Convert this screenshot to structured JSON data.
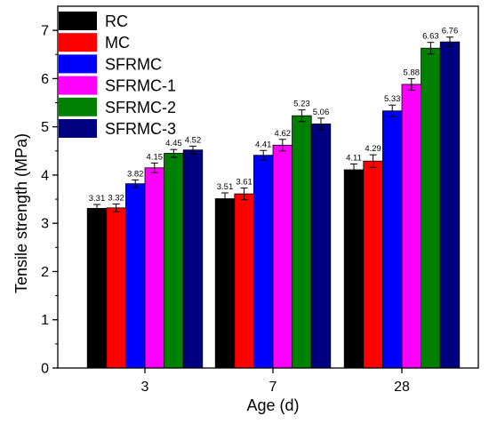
{
  "chart_data": {
    "type": "bar",
    "title": "",
    "xlabel": "Age (d)",
    "ylabel": "Tensile strength (MPa)",
    "ylim": [
      0,
      7.5
    ],
    "yticks": [
      0,
      1,
      2,
      3,
      4,
      5,
      6,
      7
    ],
    "categories": [
      "3",
      "7",
      "28"
    ],
    "legend_position": "top-left",
    "grid": false,
    "series": [
      {
        "name": "RC",
        "color": "#000000",
        "values": [
          3.31,
          3.51,
          4.11
        ],
        "errors": [
          0.08,
          0.12,
          0.12
        ],
        "value_labels": [
          "3.31",
          "3.51",
          "4.11"
        ]
      },
      {
        "name": "MC",
        "color": "#ff0000",
        "values": [
          3.32,
          3.61,
          4.29
        ],
        "errors": [
          0.08,
          0.12,
          0.13
        ],
        "value_labels": [
          "3.32",
          "3.61",
          "4.29"
        ]
      },
      {
        "name": "SFRMC",
        "color": "#0000ff",
        "values": [
          3.82,
          4.41,
          5.33
        ],
        "errors": [
          0.08,
          0.1,
          0.12
        ],
        "value_labels": [
          "3.82",
          "4.41",
          "5.33"
        ]
      },
      {
        "name": "SFRMC-1",
        "color": "#ff00ff",
        "values": [
          4.15,
          4.62,
          5.88
        ],
        "errors": [
          0.1,
          0.12,
          0.12
        ],
        "value_labels": [
          "4.15",
          "4.62",
          "5.88"
        ]
      },
      {
        "name": "SFRMC-2",
        "color": "#008000",
        "values": [
          4.45,
          5.23,
          6.63
        ],
        "errors": [
          0.08,
          0.12,
          0.12
        ],
        "value_labels": [
          "4.45",
          "5.23",
          "6.63"
        ]
      },
      {
        "name": "SFRMC-3",
        "color": "#000080",
        "values": [
          4.52,
          5.06,
          6.76
        ],
        "errors": [
          0.08,
          0.12,
          0.1
        ],
        "value_labels": [
          "4.52",
          "5.06",
          "6.76"
        ]
      }
    ]
  }
}
